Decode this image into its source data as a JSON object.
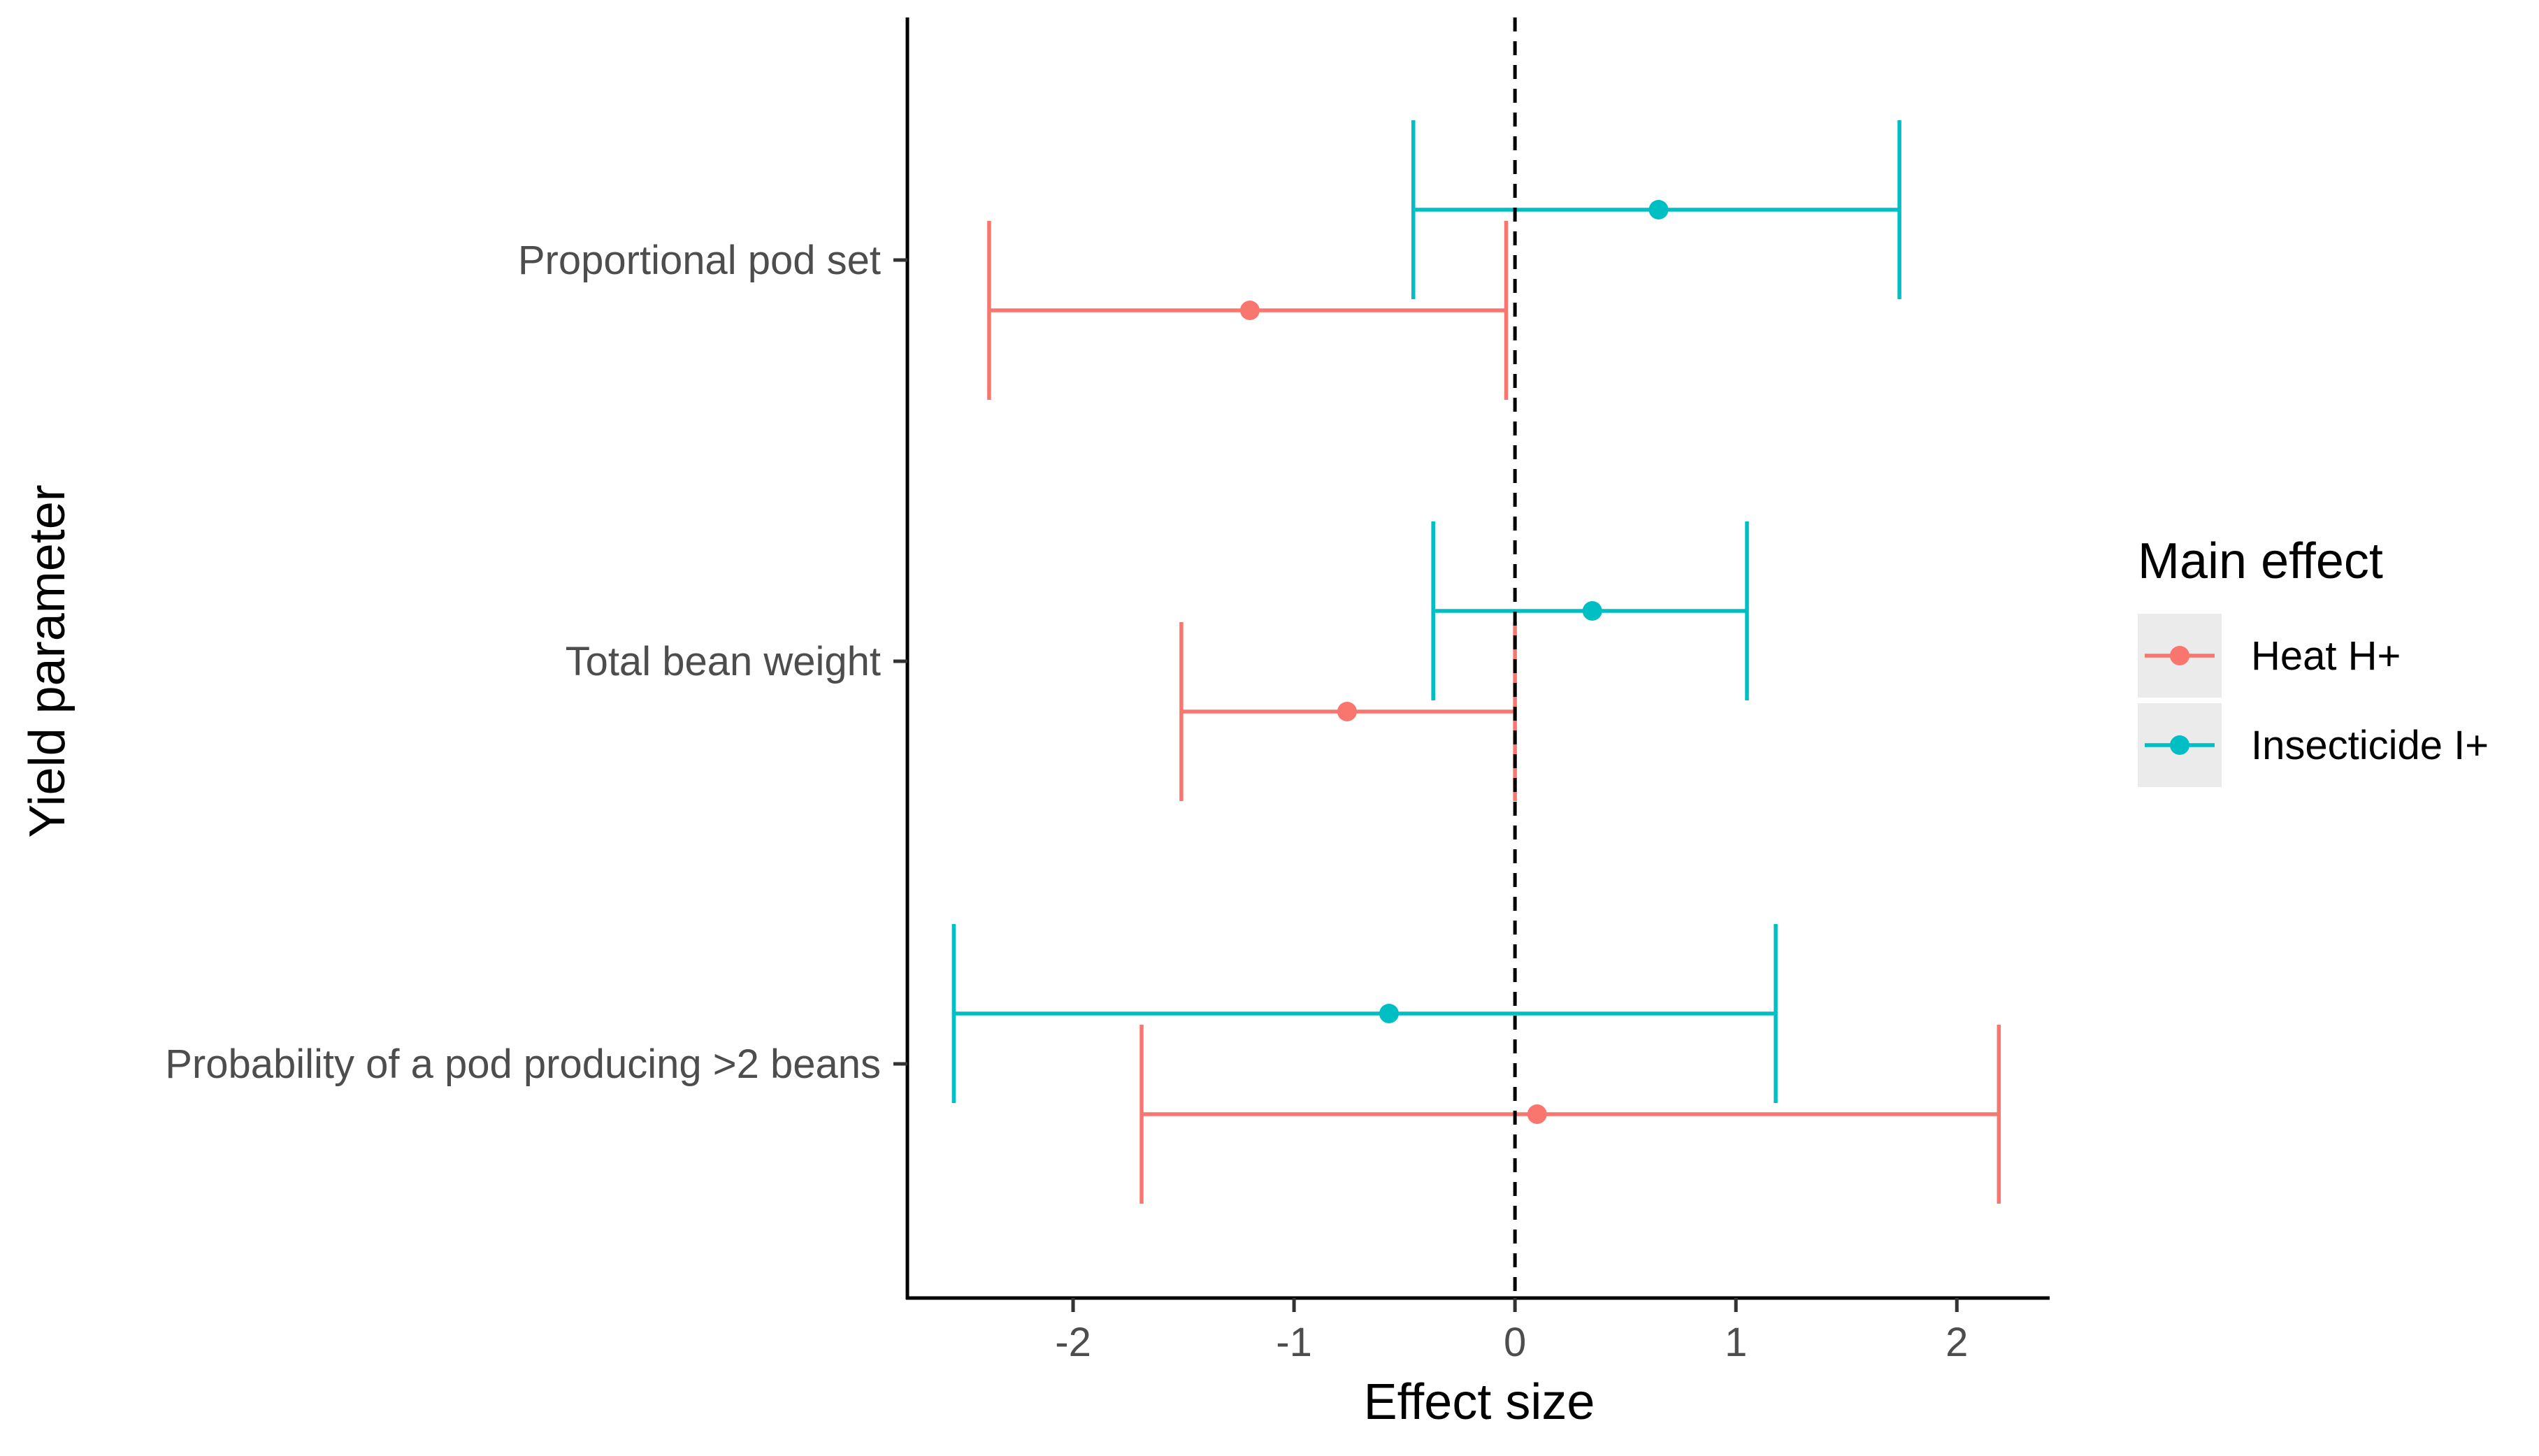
{
  "chart_data": {
    "type": "forest",
    "title": "",
    "xlabel": "Effect size",
    "ylabel": "Yield parameter",
    "xlim": [
      -2.75,
      2.42
    ],
    "x_ticks": [
      -2,
      -1,
      0,
      1,
      2
    ],
    "x_tick_labels": [
      "-2",
      "-1",
      "0",
      "1",
      "2"
    ],
    "reference_line": 0,
    "categories": [
      "Proportional pod set",
      "Total bean weight",
      "Probability of a pod producing >2 beans"
    ],
    "legend": {
      "title": "Main effect",
      "placement": "right",
      "entries": [
        "Heat H+",
        "Insecticide I+"
      ]
    },
    "series": [
      {
        "name": "Heat H+",
        "color": "#F8766D",
        "points": [
          {
            "category": "Proportional pod set",
            "estimate": -1.2,
            "lower": -2.38,
            "upper": -0.04
          },
          {
            "category": "Total bean weight",
            "estimate": -0.76,
            "lower": -1.51,
            "upper": 0.0
          },
          {
            "category": "Probability of a pod producing >2 beans",
            "estimate": 0.1,
            "lower": -1.69,
            "upper": 2.19
          }
        ]
      },
      {
        "name": "Insecticide I+",
        "color": "#00BFC4",
        "points": [
          {
            "category": "Proportional pod set",
            "estimate": 0.65,
            "lower": -0.46,
            "upper": 1.74
          },
          {
            "category": "Total bean weight",
            "estimate": 0.35,
            "lower": -0.37,
            "upper": 1.05
          },
          {
            "category": "Probability of a pod producing >2 beans",
            "estimate": -0.57,
            "lower": -2.54,
            "upper": 1.18
          }
        ]
      }
    ]
  }
}
